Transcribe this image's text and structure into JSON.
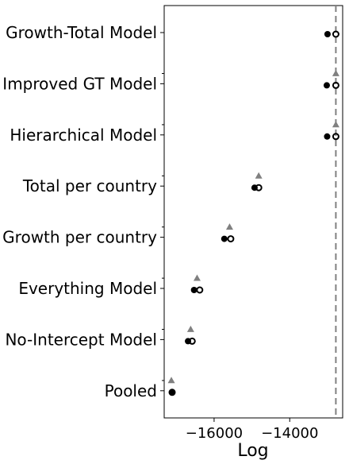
{
  "chart_data": {
    "type": "scatter",
    "orientation": "horizontal-categories",
    "categories": [
      "Growth-Total Model",
      "Improved GT Model",
      "Hierarchical Model",
      "Total per country",
      "Growth per country",
      "Everything Model",
      "No-Intercept Model",
      "Pooled"
    ],
    "xlabel": "Log",
    "xlim": [
      -17320,
      -12600
    ],
    "xticks": [
      -16000,
      -14000
    ],
    "xtick_labels": [
      "−16000",
      "−14000"
    ],
    "reference_line": {
      "x": -12780,
      "style": "dashed",
      "color": "#808080"
    },
    "series": [
      {
        "marker": "filled-circle",
        "color": "#000000",
        "values": [
          -13000,
          -13020,
          -13010,
          -14930,
          -15730,
          -16530,
          -16690,
          -17110
        ]
      },
      {
        "marker": "open-circle",
        "color": "#000000",
        "values": [
          -12780,
          -12780,
          -12780,
          -14820,
          -15560,
          -16380,
          -16580,
          -17110
        ]
      },
      {
        "marker": "triangle",
        "color": "#808080",
        "values": [
          null,
          -12780,
          -12780,
          -14820,
          -15590,
          -16450,
          -16620,
          -17130
        ]
      }
    ]
  }
}
